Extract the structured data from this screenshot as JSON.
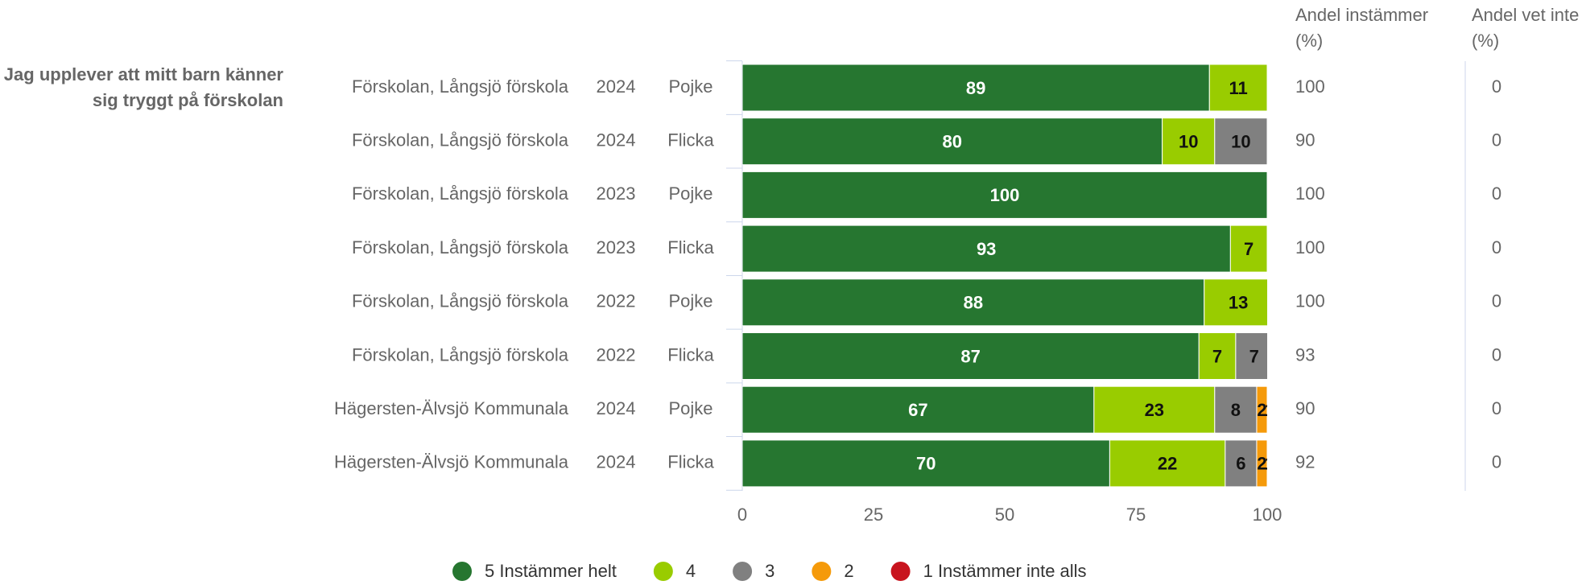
{
  "chart_data": {
    "type": "stacked-bar-horizontal",
    "question": "Jag upplever att mitt barn känner sig tryggt på förskolan",
    "units": [
      "Förskolan, Långsjö förskola",
      "Förskolan, Långsjö förskola",
      "Förskolan, Långsjö förskola",
      "Förskolan, Långsjö förskola",
      "Förskolan, Långsjö förskola",
      "Förskolan, Långsjö förskola",
      "Hägersten-Älvsjö Kommunala",
      "Hägersten-Älvsjö Kommunala"
    ],
    "years": [
      "2024",
      "2024",
      "2023",
      "2023",
      "2022",
      "2022",
      "2024",
      "2024"
    ],
    "categories": [
      "Pojke",
      "Flicka",
      "Pojke",
      "Flicka",
      "Pojke",
      "Flicka",
      "Pojke",
      "Flicka"
    ],
    "series": [
      {
        "name": "5 Instämmer helt",
        "color": "#267630",
        "values": [
          89,
          80,
          100,
          93,
          88,
          87,
          67,
          70
        ]
      },
      {
        "name": "4",
        "color": "#99cc00",
        "values": [
          11,
          10,
          0,
          7,
          13,
          7,
          23,
          22
        ]
      },
      {
        "name": "3",
        "color": "#808080",
        "values": [
          0,
          10,
          0,
          0,
          0,
          7,
          8,
          6
        ]
      },
      {
        "name": "2",
        "color": "#f59a0a",
        "values": [
          0,
          0,
          0,
          0,
          0,
          0,
          2,
          2
        ]
      },
      {
        "name": "1 Instämmer inte alls",
        "color": "#c8141e",
        "values": [
          0,
          0,
          0,
          0,
          0,
          0,
          1,
          1
        ]
      }
    ],
    "xlim": [
      0,
      100
    ],
    "xticks": [
      0,
      25,
      50,
      75,
      100
    ],
    "columns": [
      {
        "title": "Andel instämmer (%)",
        "values": [
          100,
          90,
          100,
          100,
          100,
          93,
          90,
          92
        ]
      },
      {
        "title": "Andel vet inte (%)",
        "values": [
          0,
          0,
          0,
          0,
          0,
          0,
          0,
          0
        ]
      }
    ]
  }
}
